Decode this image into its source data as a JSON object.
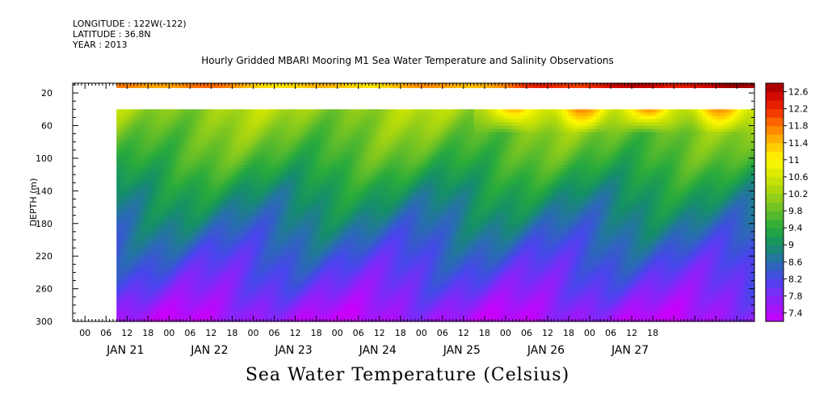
{
  "header": {
    "longitude": "LONGITUDE : 122W(-122)",
    "latitude": "LATITUDE : 36.8N",
    "year": "YEAR : 2013"
  },
  "chart_data": {
    "type": "heatmap",
    "title": "Hourly Gridded MBARI Mooring M1 Sea Water Temperature and Salinity Observations",
    "subtitle": "Sea Water Temperature (Celsius)",
    "ylabel": "DEPTH (m)",
    "xlabel": "",
    "y_range": [
      0,
      300
    ],
    "y_inverted": true,
    "y_ticks": [
      20,
      60,
      100,
      140,
      180,
      220,
      260,
      300
    ],
    "x_range_hours": [
      0,
      190
    ],
    "x_hour_ticks": [
      "00",
      "06",
      "12",
      "18",
      "00",
      "06",
      "12",
      "18",
      "00",
      "06",
      "12",
      "18",
      "00",
      "06",
      "12",
      "18",
      "00",
      "06",
      "12",
      "18",
      "00",
      "06",
      "12",
      "18",
      "00",
      "06",
      "12",
      "18"
    ],
    "x_day_labels": [
      "JAN 21",
      "JAN 22",
      "JAN 23",
      "JAN 24",
      "JAN 25",
      "JAN 26",
      "JAN 27"
    ],
    "colorbar_ticks": [
      "12.6",
      "12.2",
      "11.8",
      "11.4",
      "11",
      "10.6",
      "10.2",
      "9.8",
      "9.4",
      "9",
      "8.6",
      "8.2",
      "7.8",
      "7.4"
    ],
    "colorbar_range": [
      7.2,
      12.8
    ],
    "data_gap_depth_range": [
      14,
      40
    ],
    "data_start_hour": 9,
    "surface_temperature": [
      {
        "hour": 9,
        "value": 11.6
      },
      {
        "hour": 30,
        "value": 11.8
      },
      {
        "hour": 60,
        "value": 11.2
      },
      {
        "hour": 90,
        "value": 11.4
      },
      {
        "hour": 120,
        "value": 11.7
      },
      {
        "hour": 130,
        "value": 12.2
      },
      {
        "hour": 160,
        "value": 12.5
      },
      {
        "hour": 190,
        "value": 12.6
      }
    ],
    "profile_depths": [
      40,
      60,
      100,
      140,
      180,
      220,
      260,
      300
    ],
    "profile_temperatures": [
      10.2,
      10.0,
      9.6,
      9.1,
      8.7,
      8.3,
      7.9,
      7.4
    ],
    "warm_upper_layer": [
      {
        "hour": 111,
        "value": 11.6
      },
      {
        "hour": 118,
        "value": 11.4
      },
      {
        "hour": 130,
        "value": 11.6
      },
      {
        "hour": 148,
        "value": 11.8
      },
      {
        "hour": 168,
        "value": 11.6
      },
      {
        "hour": 190,
        "value": 11.8
      }
    ]
  }
}
